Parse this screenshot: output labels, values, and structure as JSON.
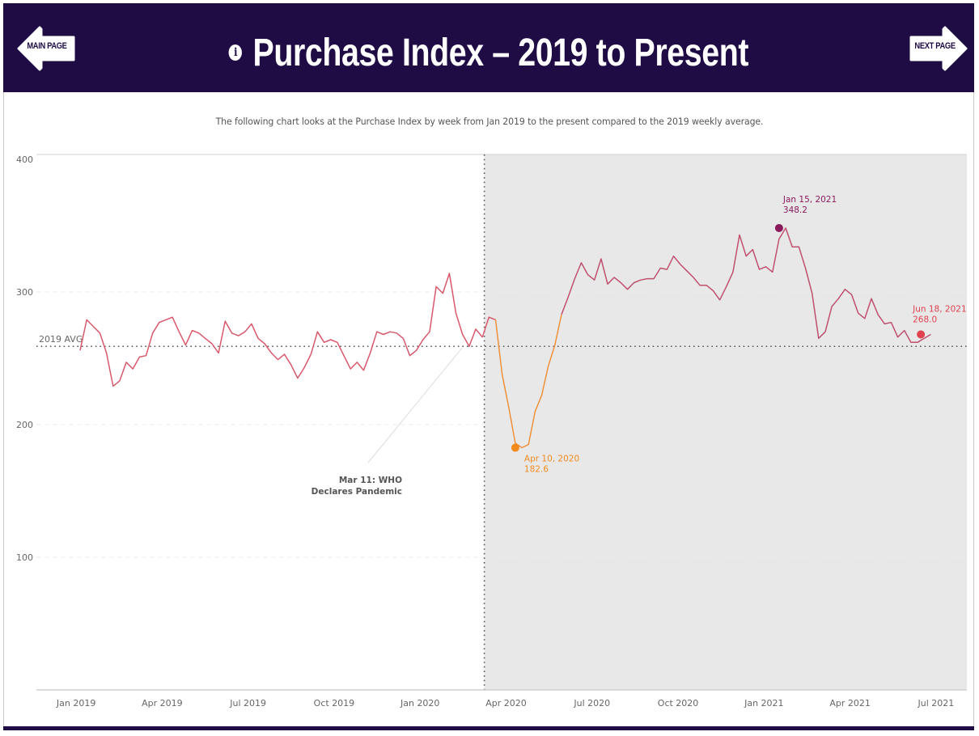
{
  "header": {
    "title": "Purchase Index – 2019 to Present",
    "info_icon": "info-icon",
    "main_page_label": "MAIN PAGE",
    "next_page_label": "NEXT PAGE",
    "background_color": "#1f0c45"
  },
  "subtitle": "The following chart looks at the Purchase Index by week from Jan 2019 to the present compared to the 2019 weekly average.",
  "chart_data": {
    "type": "line",
    "title": "Purchase Index – 2019 to Present",
    "xlabel": "",
    "ylabel": "",
    "ylim": [
      0,
      400
    ],
    "yticks": [
      100,
      200,
      300,
      400
    ],
    "xticks": [
      "Jan 2019",
      "Apr 2019",
      "Jul 2019",
      "Oct 2019",
      "Jan 2020",
      "Apr 2020",
      "Jul 2020",
      "Oct 2020",
      "Jan 2021",
      "Apr 2021",
      "Jul 2021"
    ],
    "xrange_weeks": [
      -1.5,
      135
    ],
    "grid": true,
    "legend": "none",
    "reference_line": {
      "label": "2019 AVG",
      "value": 259
    },
    "pandemic_marker": {
      "week": 61.3,
      "label_line1": "Mar 11: WHO",
      "label_line2": "Declares Pandemic"
    },
    "shaded_region": {
      "from_week": 61.3,
      "to_week": 135,
      "color": "#e8e8e8"
    },
    "series": [
      {
        "name": "Purchase Index",
        "start": "Jan 4, 2019",
        "interval": "week",
        "color": "#d9586b",
        "values": [
          256,
          279,
          274,
          269,
          254,
          229,
          233,
          247,
          242,
          251,
          252,
          269,
          277,
          279,
          281,
          270,
          260,
          271,
          269,
          265,
          261,
          254,
          278,
          269,
          267,
          270,
          276,
          265,
          261,
          254,
          249,
          253,
          245,
          235,
          243,
          253,
          270,
          262,
          264,
          262,
          252,
          242,
          247,
          241,
          254,
          270,
          268,
          270,
          269,
          265,
          252,
          256,
          264,
          270,
          304,
          299,
          314,
          284,
          268,
          259,
          272,
          266,
          281,
          279,
          238,
          213,
          186,
          182.6,
          185,
          210,
          222,
          244,
          260,
          283,
          296,
          310,
          322,
          313,
          309,
          325,
          306,
          311,
          307,
          302,
          307,
          309,
          310,
          310,
          318,
          317,
          327,
          321,
          316,
          311,
          305,
          305,
          301,
          294,
          304,
          315,
          343,
          327,
          332,
          317,
          319,
          315,
          340,
          348.2,
          334,
          334,
          318,
          299,
          265,
          270,
          289,
          295,
          302,
          298,
          284,
          280,
          295,
          283,
          276,
          277,
          266,
          271,
          262,
          262,
          265,
          268.0
        ]
      }
    ],
    "annotations": [
      {
        "label_date": "Apr 10, 2020",
        "label_value": "182.6",
        "week": 66,
        "value": 182.6,
        "color": "#f28a1e"
      },
      {
        "label_date": "Jan 15, 2021",
        "label_value": "348.2",
        "week": 106,
        "value": 348.2,
        "color": "#8b1a5c"
      },
      {
        "label_date": "Jun 18, 2021",
        "label_value": "268.0",
        "week": 127.5,
        "value": 268.0,
        "color": "#e0424f"
      }
    ]
  }
}
